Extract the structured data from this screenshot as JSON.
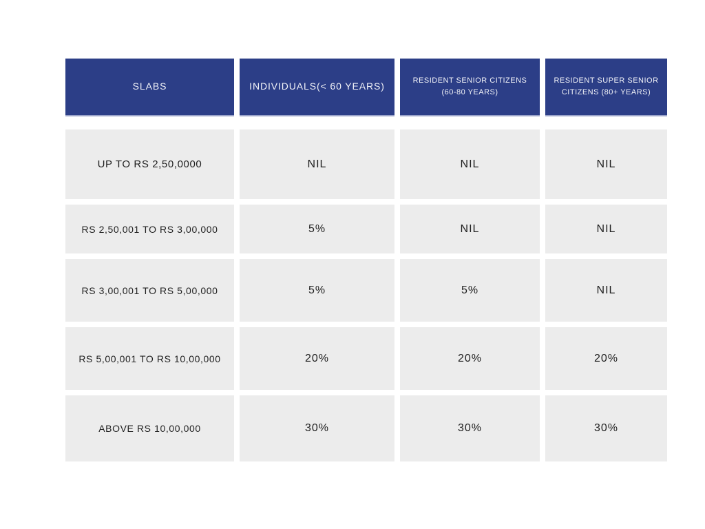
{
  "colors": {
    "page_bg": "#ffffff",
    "header_bg": "#2c3e87",
    "header_border": "#9aa3c9",
    "header_text": "#f2f3f8",
    "cell_bg": "#ececec",
    "cell_text": "#212121"
  },
  "chart_data": {
    "type": "table",
    "title": "",
    "columns": [
      "SLABS",
      "INDIVIDUALS(< 60 YEARS)",
      "RESIDENT SENIOR CITIZENS (60-80 YEARS)",
      "RESIDENT SUPER SENIOR CITIZENS (80+ YEARS)"
    ],
    "rows": [
      [
        "UP TO RS 2,50,0000",
        "NIL",
        "NIL",
        "NIL"
      ],
      [
        "RS 2,50,001 TO RS 3,00,000",
        "5%",
        "NIL",
        "NIL"
      ],
      [
        "RS 3,00,001 TO RS 5,00,000",
        "5%",
        "5%",
        "NIL"
      ],
      [
        "RS 5,00,001 TO RS 10,00,000",
        "20%",
        "20%",
        "20%"
      ],
      [
        "ABOVE RS 10,00,000",
        "30%",
        "30%",
        "30%"
      ]
    ]
  }
}
